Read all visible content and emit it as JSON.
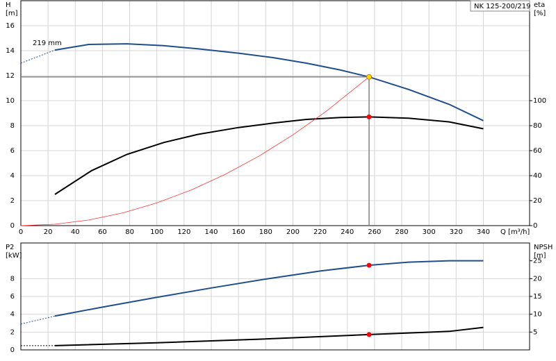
{
  "chart_data": [
    {
      "type": "line",
      "title": "NK 125-200/219",
      "ylabel": "H",
      "yunit": "[m]",
      "y2label": "eta",
      "y2unit": "[%]",
      "xlabel": "Q [m³/h]",
      "annotation": "219 mm",
      "xlim": [
        0,
        374
      ],
      "xticks": [
        0,
        20,
        40,
        60,
        80,
        100,
        120,
        140,
        160,
        180,
        200,
        220,
        240,
        260,
        280,
        300,
        320,
        340
      ],
      "ylim": [
        0,
        18
      ],
      "yticks": [
        0,
        2,
        4,
        6,
        8,
        10,
        12,
        14,
        16
      ],
      "y2lim": [
        0,
        180
      ],
      "y2ticks": [
        0,
        20,
        40,
        60,
        80,
        100
      ],
      "grid": true,
      "xtick_labels": true,
      "series": [
        {
          "color": "#1f4e8c",
          "width": 2,
          "x": [
            25,
            50,
            78,
            105,
            130,
            160,
            185,
            210,
            235,
            256,
            285,
            315,
            340
          ],
          "values": [
            14.05,
            14.5,
            14.55,
            14.4,
            14.15,
            13.8,
            13.45,
            13.0,
            12.45,
            11.9,
            10.9,
            9.7,
            8.4
          ]
        },
        {
          "color": "#1f4e8c",
          "width": 1,
          "dash": true,
          "x": [
            0,
            25
          ],
          "values": [
            13.0,
            14.05
          ]
        },
        {
          "color": "#000000",
          "width": 2,
          "axis": "y2",
          "x": [
            25,
            52,
            78,
            105,
            130,
            160,
            185,
            210,
            235,
            256,
            285,
            315,
            340
          ],
          "values": [
            25,
            44,
            57,
            66.5,
            73,
            78.5,
            82,
            85,
            86.5,
            87,
            86,
            83,
            77.5
          ]
        },
        {
          "color": "#ff3030",
          "width": 0.8,
          "x": [
            0,
            25,
            50,
            75,
            100,
            125,
            150,
            175,
            200,
            225,
            256
          ],
          "values": [
            0,
            0.11,
            0.45,
            1.02,
            1.82,
            2.84,
            4.09,
            5.56,
            7.26,
            9.19,
            11.9
          ]
        },
        {
          "color": "#ffd700",
          "marker": true,
          "guides": true,
          "x": [
            256
          ],
          "values": [
            11.9
          ]
        },
        {
          "color": "#ff0000",
          "marker": true,
          "axis": "y2",
          "x": [
            256
          ],
          "values": [
            87
          ]
        }
      ]
    },
    {
      "type": "line",
      "ylabel": "P2",
      "yunit": "[kW]",
      "y2label": "NPSH",
      "y2unit": "[m]",
      "xlim": [
        0,
        374
      ],
      "xticks": [
        0,
        20,
        40,
        60,
        80,
        100,
        120,
        140,
        160,
        180,
        200,
        220,
        240,
        260,
        280,
        300,
        320,
        340
      ],
      "ylim": [
        0,
        12
      ],
      "yticks": [
        0,
        2,
        4,
        6,
        8
      ],
      "y2lim": [
        0,
        30
      ],
      "y2ticks": [
        5,
        10,
        15,
        20,
        25
      ],
      "grid": true,
      "xtick_labels": false,
      "series": [
        {
          "color": "#1f4e8c",
          "width": 2,
          "x": [
            25,
            60,
            100,
            140,
            180,
            220,
            256,
            285,
            315,
            340
          ],
          "values": [
            3.8,
            4.8,
            5.9,
            6.95,
            7.95,
            8.85,
            9.5,
            9.85,
            10.0,
            10.0
          ]
        },
        {
          "color": "#1f4e8c",
          "width": 1,
          "dash": true,
          "x": [
            0,
            25
          ],
          "values": [
            2.9,
            3.8
          ]
        },
        {
          "color": "#000000",
          "width": 2,
          "axis": "y2",
          "x": [
            25,
            100,
            175,
            256,
            315,
            340
          ],
          "values": [
            1.2,
            2.0,
            3.0,
            4.3,
            5.2,
            6.3
          ]
        },
        {
          "color": "#000000",
          "width": 1,
          "dash": true,
          "axis": "y2",
          "x": [
            0,
            25
          ],
          "values": [
            1.2,
            1.2
          ]
        },
        {
          "color": "#ff0000",
          "marker": true,
          "x": [
            256
          ],
          "values": [
            9.5
          ]
        },
        {
          "color": "#ff0000",
          "marker": true,
          "axis": "y2",
          "x": [
            256
          ],
          "values": [
            4.3
          ]
        }
      ]
    }
  ]
}
